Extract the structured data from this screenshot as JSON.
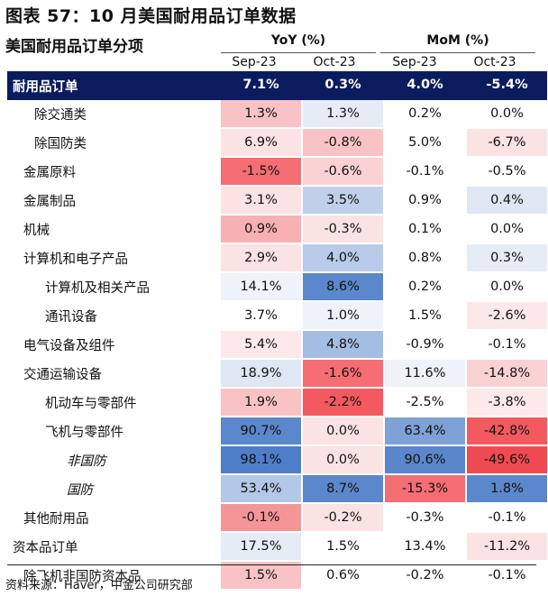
{
  "title": "图表 57：10 月美国耐用品订单数据",
  "header": {
    "row_label": "美国耐用品订单分项",
    "yoy_label": "YoY (%)",
    "mom_label": "MoM (%)",
    "columns": [
      "Sep-23",
      "Oct-23",
      "Sep-23",
      "Oct-23"
    ]
  },
  "rows": [
    {
      "label": "耐用品订单",
      "indent": 0,
      "italic": false,
      "total": true,
      "values": [
        "7.1%",
        "0.3%",
        "4.0%",
        "-5.4%"
      ],
      "colors": [
        "#0b1c5e",
        "#0b1c5e",
        "#0b1c5e",
        "#0b1c5e"
      ]
    },
    {
      "label": "除交通类",
      "indent": 2,
      "italic": false,
      "values": [
        "1.3%",
        "1.3%",
        "0.2%",
        "0.0%"
      ],
      "colors": [
        "#f9c3c5",
        "#e6ecf6",
        "#ffffff",
        "#ffffff"
      ]
    },
    {
      "label": "除国防类",
      "indent": 2,
      "italic": false,
      "values": [
        "6.9%",
        "-0.8%",
        "5.0%",
        "-6.7%"
      ],
      "colors": [
        "#fbe2e3",
        "#f9c3c5",
        "#ffffff",
        "#fbe2e3"
      ]
    },
    {
      "label": "金属原料",
      "indent": 1,
      "italic": false,
      "values": [
        "-1.5%",
        "-0.6%",
        "-0.1%",
        "-0.5%"
      ],
      "colors": [
        "#f46e73",
        "#fad2d4",
        "#ffffff",
        "#ffffff"
      ]
    },
    {
      "label": "金属制品",
      "indent": 1,
      "italic": false,
      "values": [
        "3.1%",
        "3.5%",
        "0.9%",
        "0.4%"
      ],
      "colors": [
        "#fbe2e3",
        "#c0d0ea",
        "#ffffff",
        "#dfe7f4"
      ]
    },
    {
      "label": "机械",
      "indent": 1,
      "italic": false,
      "values": [
        "0.9%",
        "-0.3%",
        "0.1%",
        "0.0%"
      ],
      "colors": [
        "#f7b0b3",
        "#fbe2e3",
        "#ffffff",
        "#ffffff"
      ]
    },
    {
      "label": "计算机和电子产品",
      "indent": 1,
      "italic": false,
      "values": [
        "2.9%",
        "4.0%",
        "0.8%",
        "0.3%"
      ],
      "colors": [
        "#fbe2e3",
        "#b8cbe8",
        "#ffffff",
        "#e6ecf6"
      ]
    },
    {
      "label": "计算机及相关产品",
      "indent": 3,
      "italic": false,
      "values": [
        "14.1%",
        "8.6%",
        "0.2%",
        "0.0%"
      ],
      "colors": [
        "#eef2f9",
        "#5b87cc",
        "#ffffff",
        "#ffffff"
      ]
    },
    {
      "label": "通讯设备",
      "indent": 3,
      "italic": false,
      "values": [
        "3.7%",
        "1.0%",
        "1.5%",
        "-2.6%"
      ],
      "colors": [
        "#ffffff",
        "#eef2f9",
        "#ffffff",
        "#fce8e9"
      ]
    },
    {
      "label": "电气设备及组件",
      "indent": 1,
      "italic": false,
      "values": [
        "5.4%",
        "4.8%",
        "-0.9%",
        "-0.1%"
      ],
      "colors": [
        "#fde9ea",
        "#a4bde3",
        "#ffffff",
        "#ffffff"
      ]
    },
    {
      "label": "交通运输设备",
      "indent": 1,
      "italic": false,
      "values": [
        "18.9%",
        "-1.6%",
        "11.6%",
        "-14.8%"
      ],
      "colors": [
        "#dfe7f4",
        "#f46e73",
        "#eef2f9",
        "#fad2d4"
      ]
    },
    {
      "label": "机动车与零部件",
      "indent": 3,
      "italic": false,
      "values": [
        "1.9%",
        "-2.2%",
        "-2.5%",
        "-3.8%"
      ],
      "colors": [
        "#f9c3c5",
        "#f25a60",
        "#ffffff",
        "#fde9ea"
      ]
    },
    {
      "label": "飞机与零部件",
      "indent": 3,
      "italic": false,
      "values": [
        "90.7%",
        "0.0%",
        "63.4%",
        "-42.8%"
      ],
      "colors": [
        "#5b87cc",
        "#fbe2e3",
        "#7ea1d7",
        "#f25a60"
      ]
    },
    {
      "label": "非国防",
      "indent": 5,
      "italic": true,
      "values": [
        "98.1%",
        "0.0%",
        "90.6%",
        "-49.6%"
      ],
      "colors": [
        "#4f7ec8",
        "#fbe2e3",
        "#5a86cb",
        "#f04a51"
      ]
    },
    {
      "label": "国防",
      "indent": 5,
      "italic": true,
      "values": [
        "53.4%",
        "8.7%",
        "-15.3%",
        "1.8%"
      ],
      "colors": [
        "#b3c7e7",
        "#5b87cc",
        "#f46e73",
        "#5b87cc"
      ]
    },
    {
      "label": "其他耐用品",
      "indent": 1,
      "italic": false,
      "values": [
        "-0.1%",
        "-0.2%",
        "-0.3%",
        "-0.1%"
      ],
      "colors": [
        "#f59598",
        "#fbe2e3",
        "#ffffff",
        "#ffffff"
      ]
    },
    {
      "label": "资本品订单",
      "indent": 0,
      "italic": false,
      "values": [
        "17.5%",
        "1.5%",
        "13.4%",
        "-11.2%"
      ],
      "colors": [
        "#e6ecf6",
        "#ffffff",
        "#ffffff",
        "#fbe2e3"
      ]
    },
    {
      "label": "除飞机非国防资本品",
      "indent": 1,
      "italic": false,
      "values": [
        "1.5%",
        "0.6%",
        "-0.2%",
        "-0.1%"
      ],
      "colors": [
        "#f9c3c5",
        "#ffffff",
        "#ffffff",
        "#ffffff"
      ]
    }
  ],
  "source": "资料来源：Haver，中金公司研究部"
}
